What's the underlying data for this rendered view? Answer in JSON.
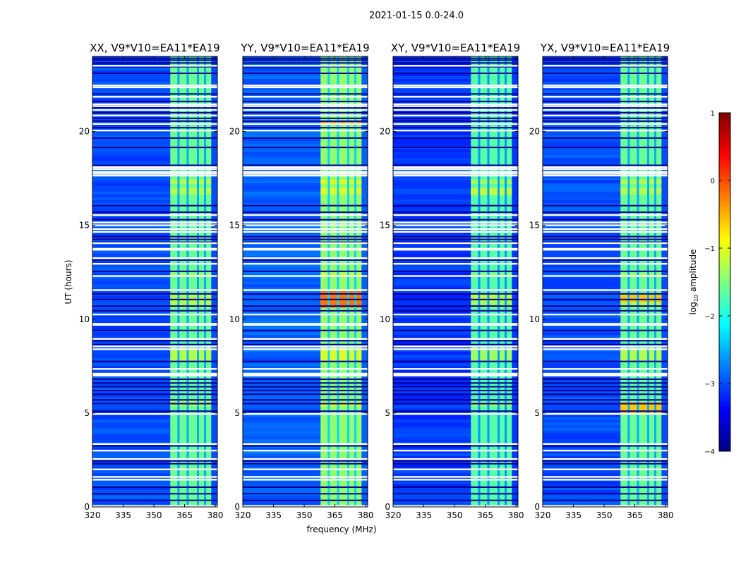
{
  "figure": {
    "suptitle": "2021-01-15 0.0-24.0",
    "xlabel": "frequency (MHz)",
    "ylabel": "UT (hours)",
    "colorbar": {
      "label_prefix": "log",
      "label_sub": "10",
      "label_suffix": " amplitude",
      "ticks": [
        "1",
        "0",
        "−1",
        "−2",
        "−3",
        "−4"
      ],
      "tick_values": [
        1,
        0,
        -1,
        -2,
        -3,
        -4
      ],
      "range": [
        -4,
        1
      ],
      "colormap": "jet",
      "stops": [
        "#00007f",
        "#0000ff",
        "#007fff",
        "#00ffff",
        "#7fff7f",
        "#ffff00",
        "#ff7f00",
        "#ff0000",
        "#7f0000"
      ]
    }
  },
  "chart_data": {
    "type": "heatmap",
    "x_range_mhz": [
      320,
      381
    ],
    "y_range_hours": [
      0,
      24
    ],
    "x_ticks": [
      320,
      335,
      350,
      365,
      380
    ],
    "y_ticks": [
      0,
      5,
      10,
      15,
      20
    ],
    "band_mhz": [
      358,
      378
    ],
    "band_subbands_mhz": [
      [
        358,
        361.5
      ],
      [
        362.5,
        366
      ],
      [
        367,
        371
      ],
      [
        372,
        374.5
      ],
      [
        375.5,
        378
      ]
    ],
    "flagged_hours": [
      0.05,
      1.45,
      1.6,
      2.0,
      2.55,
      3.0,
      3.35,
      4.95,
      7.0,
      7.05,
      7.1,
      7.35,
      8.4,
      8.55,
      8.95,
      9.7,
      9.75,
      10.25,
      11.55,
      12.3,
      12.95,
      13.25,
      13.7,
      13.75,
      14.05,
      14.65,
      14.8,
      15.0,
      15.15,
      15.55,
      17.65,
      17.75,
      17.85,
      18.0,
      18.1,
      20.05,
      20.4,
      20.85,
      21.15,
      21.35,
      21.45,
      21.85,
      22.35,
      22.45,
      23.5
    ],
    "dark_rows_hours": [
      0.35,
      0.7,
      1.05,
      2.3,
      2.45,
      3.25,
      5.1,
      5.5,
      5.7,
      6.0,
      6.2,
      6.4,
      6.6,
      6.8,
      7.75,
      8.65,
      8.85,
      9.4,
      10.45,
      10.7,
      11.05,
      11.35,
      12.55,
      13.15,
      14.1,
      14.25,
      14.4,
      15.3,
      15.7,
      16.05,
      18.2,
      19.15,
      19.65,
      20.2,
      20.55,
      20.7,
      21.0,
      21.25,
      21.6,
      22.0,
      23.1,
      23.45,
      23.65,
      23.8,
      23.9
    ],
    "bright_segments_hours": [
      [
        17.2,
        17.45
      ],
      [
        16.65,
        17.0
      ],
      [
        12.3,
        12.45
      ],
      [
        10.6,
        11.4
      ],
      [
        7.8,
        8.4
      ],
      [
        5.35,
        5.6
      ]
    ],
    "panels": [
      {
        "title": "XX, V9*V10=EA11*EA19",
        "bg_level": -3.0,
        "band_level": -1.6,
        "peak_level": -1.3,
        "peak_hours": [
          [
            5.35,
            5.75
          ]
        ]
      },
      {
        "title": "YY, V9*V10=EA11*EA19",
        "bg_level": -2.9,
        "band_level": -1.4,
        "peak_level": -0.2,
        "peak_hours": [
          [
            10.6,
            11.5
          ],
          [
            20.35,
            20.55
          ]
        ]
      },
      {
        "title": "XY, V9*V10=EA11*EA19",
        "bg_level": -3.1,
        "band_level": -1.7,
        "peak_level": -1.2,
        "peak_hours": [
          [
            11.0,
            11.4
          ],
          [
            16.6,
            17.0
          ]
        ]
      },
      {
        "title": "YX, V9*V10=EA11*EA19",
        "bg_level": -3.0,
        "band_level": -1.6,
        "peak_level": -0.6,
        "peak_hours": [
          [
            10.9,
            11.3
          ],
          [
            5.0,
            5.6
          ]
        ]
      }
    ]
  }
}
